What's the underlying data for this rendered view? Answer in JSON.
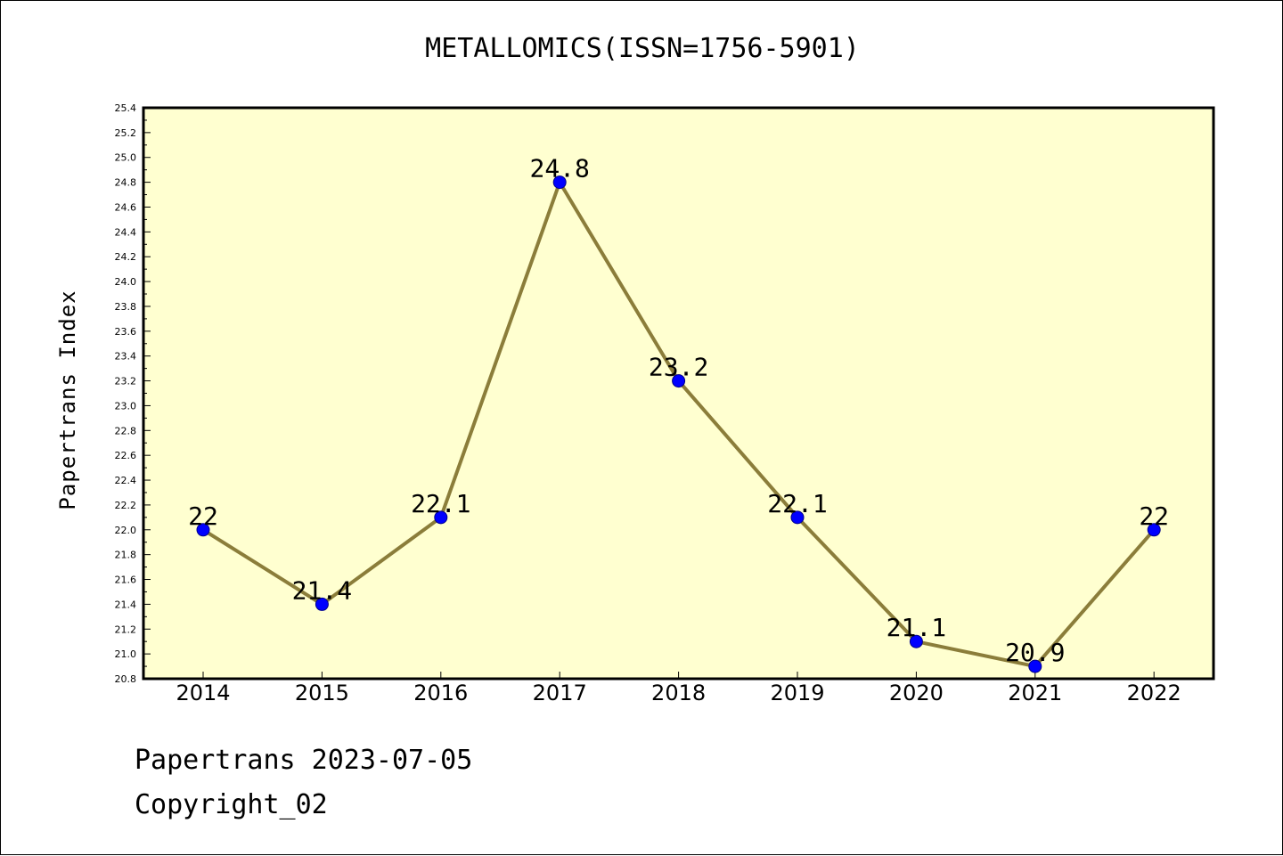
{
  "chart_data": {
    "type": "line",
    "title": "METALLOMICS(ISSN=1756-5901)",
    "ylabel": "Papertrans Index",
    "xlabel": "",
    "x": [
      "2014",
      "2015",
      "2016",
      "2017",
      "2018",
      "2019",
      "2020",
      "2021",
      "2022"
    ],
    "series": [
      {
        "values": [
          22,
          21.4,
          22.1,
          24.8,
          23.2,
          22.1,
          21.1,
          20.9,
          22
        ],
        "data_labels": [
          "22",
          "21.4",
          "22.1",
          "24.8",
          "23.2",
          "22.1",
          "21.1",
          "20.9",
          "22"
        ]
      }
    ],
    "ylim": [
      20.8,
      25.4
    ],
    "y_ticks": [
      "20.8",
      "21.0",
      "21.2",
      "21.4",
      "21.6",
      "21.8",
      "22.0",
      "22.2",
      "22.4",
      "22.6",
      "22.8",
      "23.0",
      "23.2",
      "23.4",
      "23.6",
      "23.8",
      "24.0",
      "24.2",
      "24.4",
      "24.6",
      "24.8",
      "25.0",
      "25.2",
      "25.4"
    ],
    "grid": false,
    "colors": {
      "plot_background": "#ffffd0",
      "line": "#8b7d3a",
      "marker": "#0000ff"
    }
  },
  "footer": {
    "line1": "Papertrans 2023-07-05",
    "line2": "Copyright_02"
  }
}
